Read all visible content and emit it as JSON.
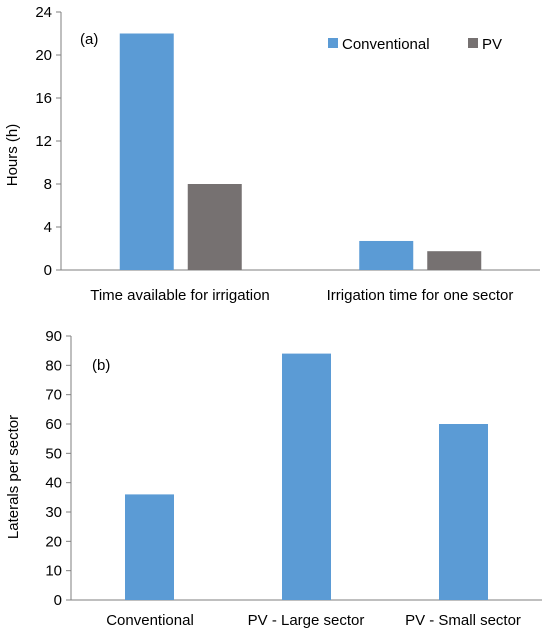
{
  "chart_data": [
    {
      "type": "bar",
      "annotation": "(a)",
      "categories": [
        "Time available for irrigation",
        "Irrigation time for one sector"
      ],
      "series": [
        {
          "name": "Conventional",
          "values": [
            22,
            2.7
          ],
          "color": "#5B9BD5"
        },
        {
          "name": "PV",
          "values": [
            8,
            1.75
          ],
          "color": "#767171"
        }
      ],
      "ylabel": "Hours (h)",
      "xlabel": "",
      "ylim": [
        0,
        24
      ],
      "yticks": [
        0,
        4,
        8,
        12,
        16,
        20,
        24
      ],
      "grid": false,
      "legend": "top-right"
    },
    {
      "type": "bar",
      "annotation": "(b)",
      "categories": [
        "Conventional",
        "PV - Large sector",
        "PV - Small sector"
      ],
      "series": [
        {
          "values": [
            36,
            84,
            60
          ],
          "color": "#5B9BD5"
        }
      ],
      "ylabel": "Laterals per sector",
      "xlabel": "",
      "ylim": [
        0,
        90
      ],
      "yticks": [
        0,
        10,
        20,
        30,
        40,
        50,
        60,
        70,
        80,
        90
      ],
      "grid": false,
      "legend": "none"
    }
  ]
}
